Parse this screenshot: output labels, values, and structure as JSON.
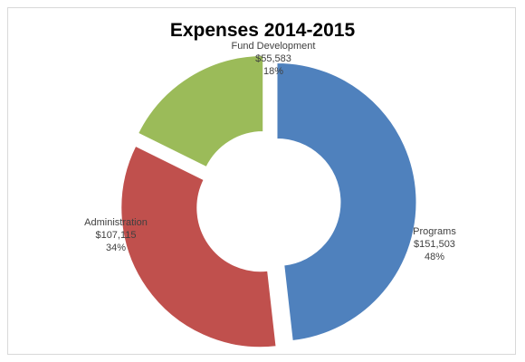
{
  "chart_data": {
    "type": "pie",
    "style": "doughnut",
    "title": "Expenses  2014-2015",
    "slices": [
      {
        "name": "Programs",
        "value": 151503,
        "value_label": "$151,503",
        "percent_label": "48%",
        "color": "#4f81bd"
      },
      {
        "name": "Administration",
        "value": 107115,
        "value_label": "$107,115",
        "percent_label": "34%",
        "color": "#c0504d"
      },
      {
        "name": "Fund Development",
        "value": 55583,
        "value_label": "$55,583",
        "percent_label": "18%",
        "color": "#9bbb59"
      }
    ]
  }
}
